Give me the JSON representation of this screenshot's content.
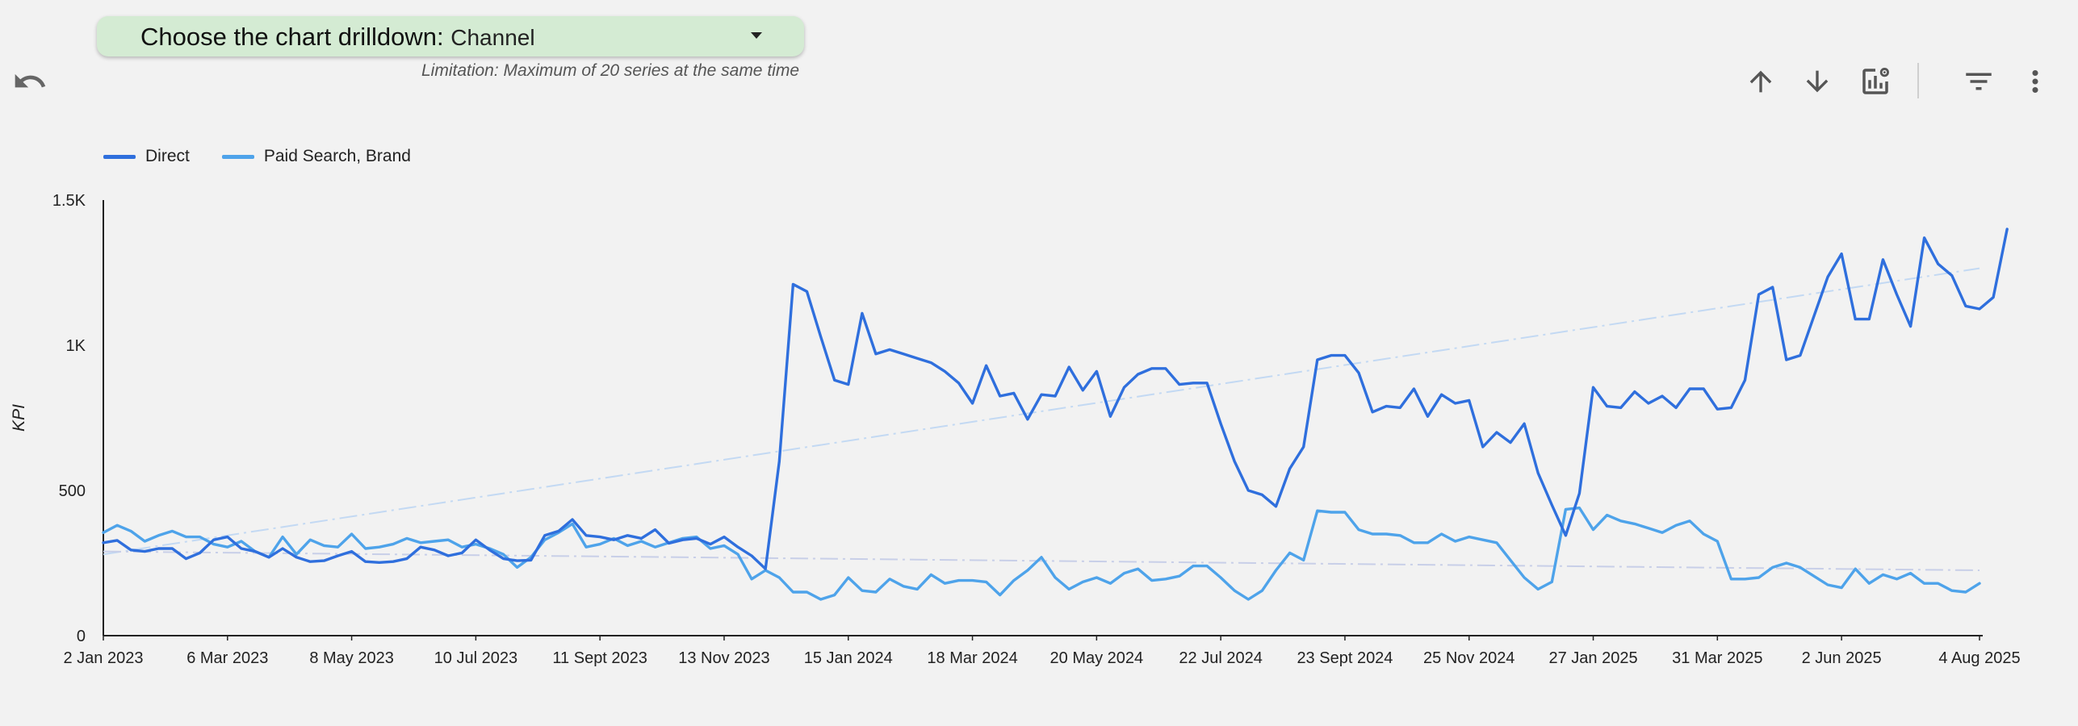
{
  "drilldown": {
    "label": "Choose the chart drilldown: ",
    "value": "Channel",
    "limitation": "Limitation: Maximum of 20 series at the same time"
  },
  "toolbar": {
    "undo_icon": "undo-icon",
    "up_icon": "arrow-up-icon",
    "down_icon": "arrow-down-icon",
    "chartset_icon": "chart-settings-icon",
    "filter_icon": "filter-icon",
    "more_icon": "more-vert-icon"
  },
  "colors": {
    "direct": "#2f6fdd",
    "paid_brand": "#4ea3ea",
    "trend_direct": "#c3d9f3",
    "trend_paid": "#c8cfe8",
    "axis": "#222222",
    "background": "#f2f2f2",
    "drilldown_bg": "#d4ebd3"
  },
  "chart_data": {
    "type": "line",
    "title": "",
    "xlabel": "",
    "ylabel": "KPI",
    "ylim": [
      0,
      1500
    ],
    "yticks": [
      0,
      500,
      1000,
      1500
    ],
    "ytick_labels": [
      "0",
      "500",
      "1K",
      "1.5K"
    ],
    "xtick_labels": [
      "2 Jan 2023",
      "6 Mar 2023",
      "8 May 2023",
      "10 Jul 2023",
      "11 Sept 2023",
      "13 Nov 2023",
      "15 Jan 2024",
      "18 Mar 2024",
      "20 May 2024",
      "22 Jul 2024",
      "23 Sept 2024",
      "25 Nov 2024",
      "27 Jan 2025",
      "31 Mar 2025",
      "2 Jun 2025",
      "4 Aug 2025"
    ],
    "weeks": 137,
    "legend_position": "top-left",
    "series": [
      {
        "name": "Direct",
        "color": "#2f6fdd",
        "values": [
          320,
          328,
          295,
          290,
          300,
          300,
          265,
          285,
          330,
          340,
          300,
          290,
          270,
          300,
          270,
          255,
          258,
          275,
          290,
          255,
          252,
          255,
          265,
          305,
          295,
          275,
          285,
          330,
          295,
          265,
          258,
          260,
          345,
          360,
          400,
          345,
          340,
          330,
          345,
          335,
          365,
          318,
          330,
          335,
          315,
          340,
          305,
          275,
          230,
          600,
          1210,
          1185,
          1030,
          880,
          865,
          1110,
          970,
          985,
          970,
          955,
          940,
          910,
          870,
          800,
          930,
          825,
          835,
          745,
          830,
          825,
          925,
          845,
          910,
          755,
          855,
          900,
          920,
          920,
          865,
          870,
          870,
          730,
          600,
          500,
          485,
          445,
          575,
          650,
          950,
          965,
          965,
          905,
          770,
          790,
          785,
          850,
          755,
          830,
          800,
          810,
          650,
          700,
          665,
          730,
          560,
          450,
          345,
          490,
          855,
          790,
          785,
          840,
          800,
          825,
          785,
          850,
          850,
          780,
          785,
          880,
          1175,
          1200,
          950,
          965,
          1100,
          1235,
          1315,
          1090,
          1090,
          1295,
          1175,
          1065,
          1370,
          1280,
          1240,
          1135,
          1125,
          1165,
          1400
        ]
      },
      {
        "name": "Paid Search, Brand",
        "color": "#4ea3ea",
        "values": [
          355,
          380,
          360,
          325,
          345,
          360,
          340,
          340,
          315,
          305,
          325,
          290,
          270,
          340,
          280,
          330,
          310,
          305,
          350,
          300,
          305,
          315,
          335,
          320,
          325,
          330,
          305,
          315,
          300,
          280,
          235,
          270,
          330,
          355,
          385,
          305,
          315,
          335,
          310,
          325,
          305,
          320,
          335,
          340,
          300,
          310,
          280,
          195,
          225,
          200,
          150,
          150,
          125,
          140,
          200,
          155,
          150,
          195,
          170,
          160,
          210,
          180,
          190,
          190,
          185,
          140,
          190,
          225,
          270,
          200,
          160,
          185,
          200,
          180,
          215,
          230,
          190,
          195,
          205,
          240,
          240,
          200,
          155,
          125,
          155,
          225,
          285,
          260,
          430,
          425,
          425,
          365,
          350,
          350,
          345,
          320,
          320,
          350,
          325,
          340,
          330,
          320,
          260,
          200,
          160,
          185,
          435,
          440,
          365,
          415,
          395,
          385,
          370,
          355,
          380,
          395,
          350,
          325,
          195,
          195,
          200,
          235,
          250,
          235,
          205,
          175,
          165,
          230,
          180,
          210,
          195,
          215,
          180,
          180,
          155,
          150,
          180
        ]
      }
    ],
    "trendlines": [
      {
        "series": "Direct",
        "start": 280,
        "end": 1265
      },
      {
        "series": "Paid Search, Brand",
        "start": 290,
        "end": 225
      }
    ]
  }
}
